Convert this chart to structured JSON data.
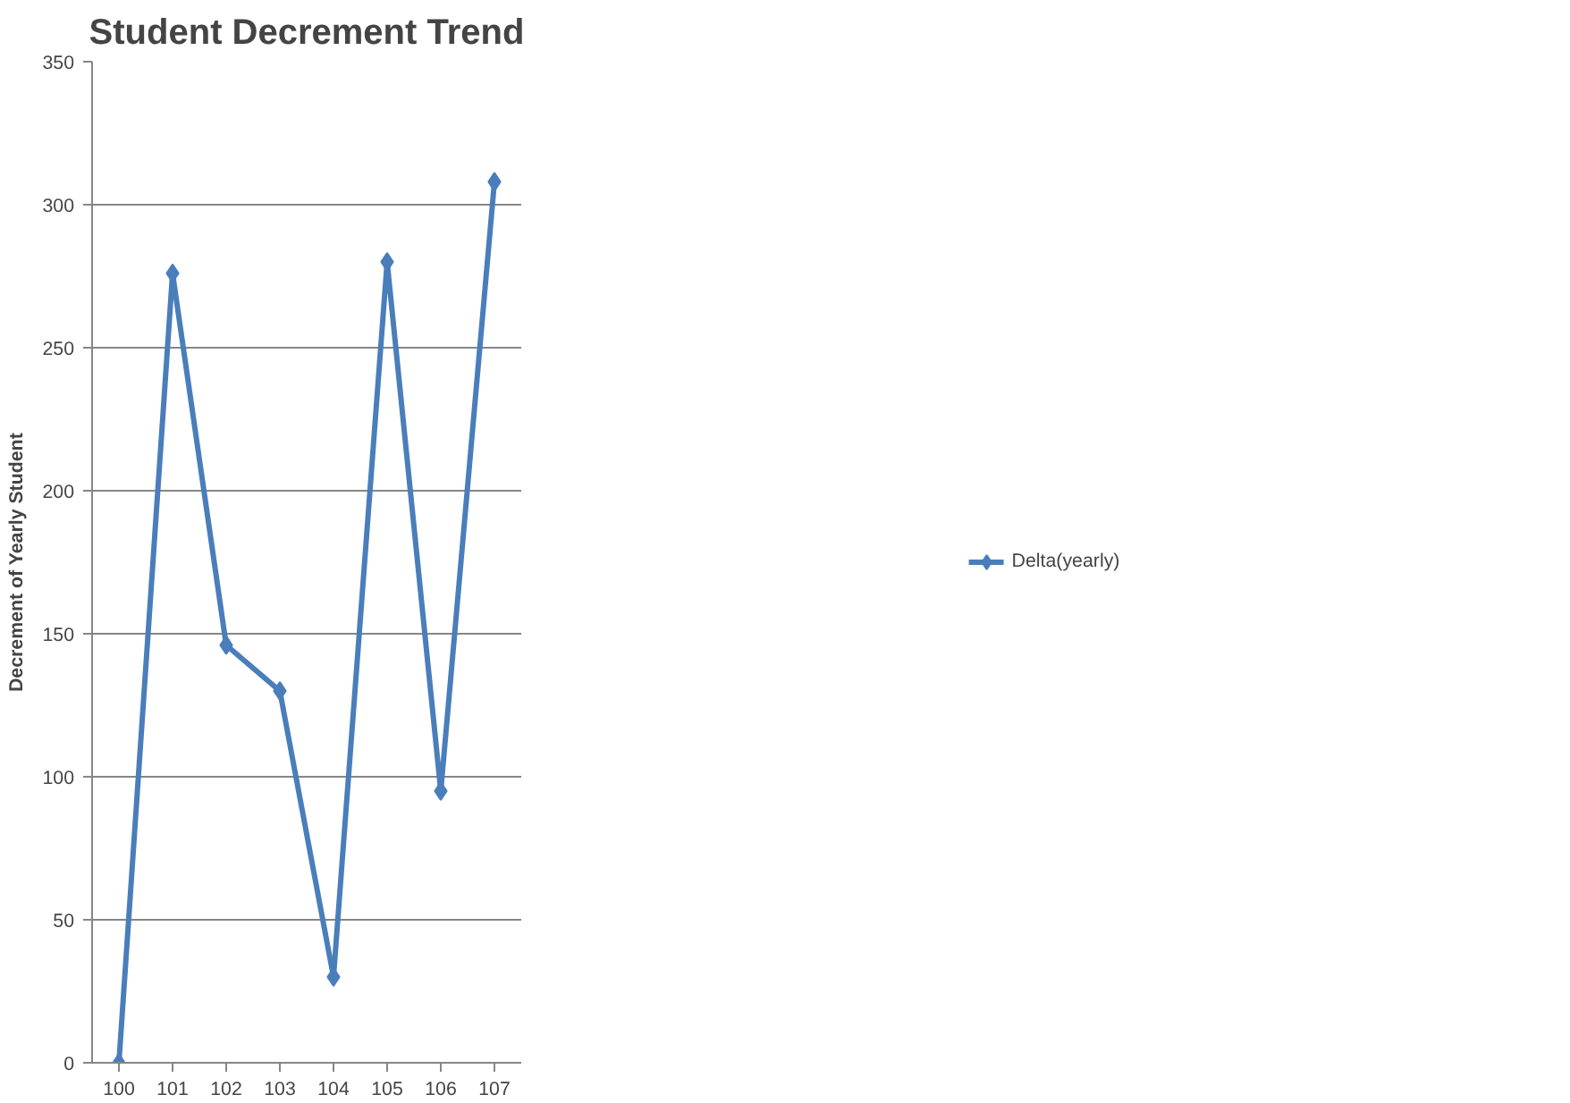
{
  "chart_data": {
    "type": "line",
    "title": "Student Decrement Trend",
    "ylabel": "Decrement of Yearly Student",
    "categories": [
      "100",
      "101",
      "102",
      "103",
      "104",
      "105",
      "106",
      "107"
    ],
    "series": [
      {
        "name": "Delta(yearly)",
        "color": "#4a7ebb",
        "values": [
          0,
          276,
          146,
          130,
          30,
          280,
          95,
          308
        ]
      }
    ],
    "ylim": [
      0,
      350
    ],
    "yticks": [
      0,
      50,
      100,
      150,
      200,
      250,
      300,
      350
    ],
    "grid": "y",
    "legend": "right",
    "marker": "diamond",
    "line_style": "solid"
  }
}
